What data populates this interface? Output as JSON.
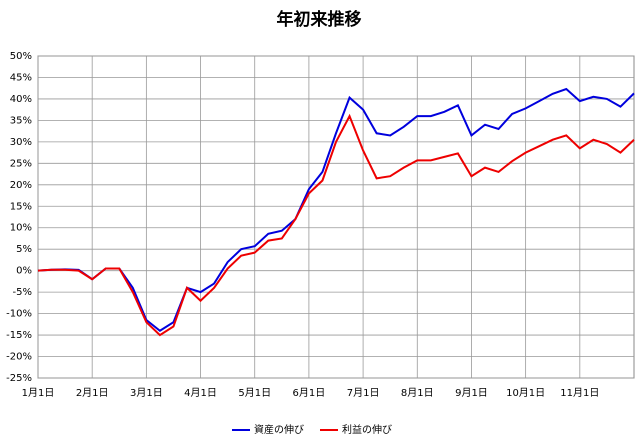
{
  "chart_data": {
    "type": "line",
    "title": "年初来推移",
    "categories": [
      "1月1日",
      null,
      null,
      null,
      "2月1日",
      null,
      null,
      null,
      "3月1日",
      null,
      null,
      null,
      "4月1日",
      null,
      null,
      null,
      "5月1日",
      null,
      null,
      null,
      "6月1日",
      null,
      null,
      null,
      "7月1日",
      null,
      null,
      null,
      "8月1日",
      null,
      null,
      null,
      "9月1日",
      null,
      null,
      null,
      "10月1日",
      null,
      null,
      null,
      "11月1日",
      null,
      null,
      null,
      null
    ],
    "series": [
      {
        "name": "資産の伸び",
        "color": "#0000dd",
        "values": [
          0,
          0.2,
          0.3,
          0.2,
          -2,
          0.5,
          0.5,
          -4,
          -11.5,
          -14,
          -12,
          -4,
          -5,
          -3,
          2,
          5,
          5.7,
          8.6,
          9.3,
          12,
          19,
          23,
          32,
          40.3,
          37.5,
          32,
          31.5,
          33.5,
          36,
          36,
          37,
          38.5,
          31.5,
          34,
          33,
          36.5,
          37.8,
          39.5,
          41.2,
          42.3,
          39.5,
          40.5,
          40,
          38.2,
          41.3
        ]
      },
      {
        "name": "利益の伸び",
        "color": "#ee0000",
        "values": [
          0,
          0.2,
          0.2,
          0,
          -2,
          0.5,
          0.5,
          -5,
          -12,
          -15,
          -13,
          -4,
          -7,
          -4,
          0.5,
          3.5,
          4.2,
          7,
          7.5,
          12,
          18,
          21,
          30,
          36,
          28,
          21.5,
          22,
          24,
          25.7,
          25.7,
          26.5,
          27.3,
          22,
          24,
          23,
          25.5,
          27.5,
          29,
          30.5,
          31.5,
          28.5,
          30.5,
          29.5,
          27.5,
          30.5
        ]
      }
    ],
    "ylim": [
      -25,
      50
    ],
    "yticks": [
      {
        "value": -25,
        "label": "-25%"
      },
      {
        "value": -20,
        "label": "-20%"
      },
      {
        "value": -15,
        "label": "-15%"
      },
      {
        "value": -10,
        "label": "-10%"
      },
      {
        "value": -5,
        "label": "-5%"
      },
      {
        "value": 0,
        "label": "0%"
      },
      {
        "value": 5,
        "label": "5%"
      },
      {
        "value": 10,
        "label": "10%"
      },
      {
        "value": 15,
        "label": "15%"
      },
      {
        "value": 20,
        "label": "20%"
      },
      {
        "value": 25,
        "label": "25%"
      },
      {
        "value": 30,
        "label": "30%"
      },
      {
        "value": 35,
        "label": "35%"
      },
      {
        "value": 40,
        "label": "40%"
      },
      {
        "value": 45,
        "label": "45%"
      },
      {
        "value": 50,
        "label": "50%"
      }
    ],
    "grid": true,
    "legend": "bottom"
  }
}
